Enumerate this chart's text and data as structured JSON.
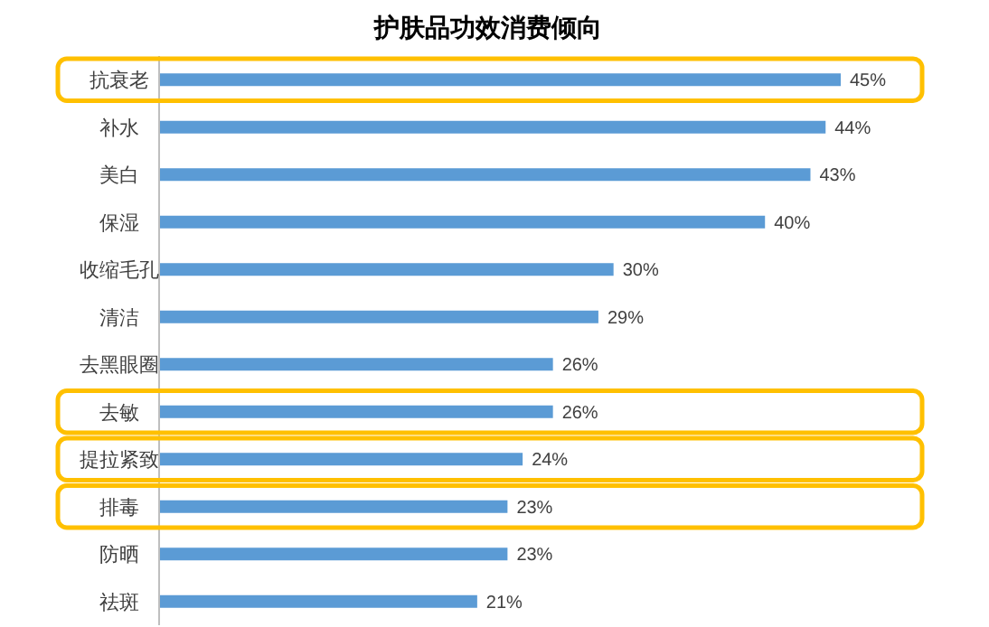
{
  "chart_data": {
    "type": "bar",
    "orientation": "horizontal",
    "title": "护肤品功效消费倾向",
    "categories": [
      "抗衰老",
      "补水",
      "美白",
      "保湿",
      "收缩毛孔",
      "清洁",
      "去黑眼圈",
      "去敏",
      "提拉紧致",
      "排毒",
      "防晒",
      "祛斑"
    ],
    "values": [
      45,
      44,
      43,
      40,
      30,
      29,
      26,
      26,
      24,
      23,
      23,
      21
    ],
    "value_labels": [
      "45%",
      "44%",
      "43%",
      "40%",
      "30%",
      "29%",
      "26%",
      "26%",
      "24%",
      "23%",
      "23%",
      "21%"
    ],
    "color": "#5b9bd5"
  }
}
